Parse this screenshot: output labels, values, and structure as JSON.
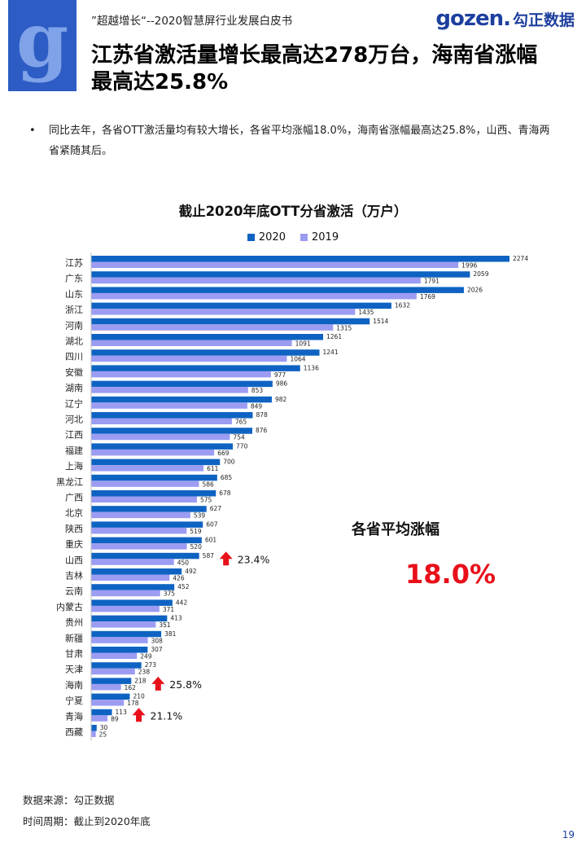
{
  "header": {
    "subtitle": "”超越增长“--2020智慧屏行业发展白皮书",
    "brand_en": "gozen.",
    "brand_cn": "勾正数据",
    "logo_letter": "g",
    "logo_color": "#2d5cc4"
  },
  "page_title": "江苏省激活量增长最高达278万台，海南省涨幅最高达25.8%",
  "bullet": "同比去年，各省OTT激活量均有较大增长，各省平均涨幅18.0%，海南省涨幅最高达25.8%，山西、青海两省紧随其后。",
  "chart_data": {
    "type": "bar",
    "orientation": "horizontal",
    "title": "截止2020年底OTT分省激活（万户）",
    "legend_position": "top",
    "categories": [
      "江苏",
      "广东",
      "山东",
      "浙江",
      "河南",
      "湖北",
      "四川",
      "安徽",
      "湖南",
      "辽宁",
      "河北",
      "江西",
      "福建",
      "上海",
      "黑龙江",
      "广西",
      "北京",
      "陕西",
      "重庆",
      "山西",
      "吉林",
      "云南",
      "内蒙古",
      "贵州",
      "新疆",
      "甘肃",
      "天津",
      "海南",
      "宁夏",
      "青海",
      "西藏"
    ],
    "series": [
      {
        "name": "2020",
        "color": "#0e63c2",
        "values": [
          2274,
          2059,
          2026,
          1632,
          1514,
          1261,
          1241,
          1136,
          986,
          982,
          878,
          876,
          770,
          700,
          685,
          678,
          627,
          607,
          601,
          587,
          492,
          452,
          442,
          413,
          381,
          307,
          273,
          218,
          210,
          113,
          30
        ]
      },
      {
        "name": "2019",
        "color": "#9b9cf2",
        "values": [
          1996,
          1791,
          1769,
          1435,
          1315,
          1091,
          1064,
          977,
          853,
          849,
          765,
          754,
          669,
          611,
          586,
          575,
          539,
          519,
          520,
          450,
          426,
          375,
          371,
          351,
          308,
          249,
          238,
          162,
          178,
          89,
          25
        ]
      }
    ],
    "xlim": [
      0,
      2274
    ],
    "grid": false,
    "annotations": [
      {
        "category": "山西",
        "text": "23.4%",
        "arrow_color": "#e8101a"
      },
      {
        "category": "海南",
        "text": "25.8%",
        "arrow_color": "#e8101a"
      },
      {
        "category": "青海",
        "text": "21.1%",
        "arrow_color": "#e8101a"
      }
    ]
  },
  "summary": {
    "label": "各省平均涨幅",
    "value": "18.0%"
  },
  "footer": {
    "source": "数据来源：勾正数据",
    "period": "时间周期：截止到2020年底"
  },
  "page_number": "19"
}
